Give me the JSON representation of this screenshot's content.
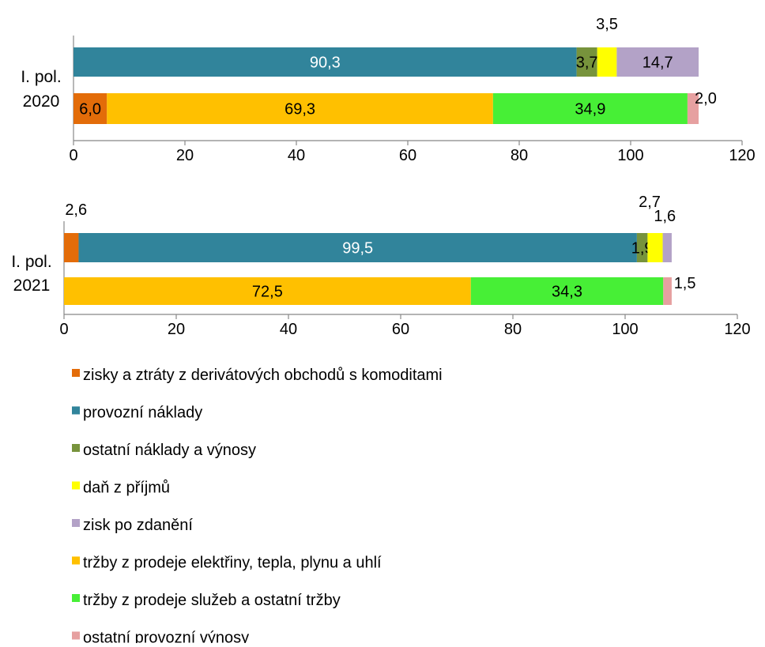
{
  "colors": {
    "derivatives": "#e36c09",
    "operating_costs": "#31849b",
    "other_costs": "#77933c",
    "income_tax": "#ffff00",
    "profit": "#b3a2c7",
    "sales_energy": "#ffc000",
    "sales_services": "#47ef36",
    "other_revenue": "#e6a0a0"
  },
  "legend": [
    {
      "key": "derivatives",
      "label": "zisky a ztráty z derivátových obchodů s komoditami"
    },
    {
      "key": "operating_costs",
      "label": "provozní náklady"
    },
    {
      "key": "other_costs",
      "label": "ostatní náklady a výnosy"
    },
    {
      "key": "income_tax",
      "label": "daň z příjmů"
    },
    {
      "key": "profit",
      "label": "zisk po zdanění"
    },
    {
      "key": "sales_energy",
      "label": "tržby z prodeje elektřiny, tepla, plynu a uhlí"
    },
    {
      "key": "sales_services",
      "label": "tržby z prodeje služeb a ostatní tržby"
    },
    {
      "key": "other_revenue",
      "label": "ostatní provozní výnosy"
    }
  ],
  "chart_data": [
    {
      "type": "bar",
      "orientation": "horizontal",
      "stacked": true,
      "category_label": [
        "I. pol.",
        "2020"
      ],
      "xlim": [
        0,
        120
      ],
      "xticks": [
        0,
        20,
        40,
        60,
        80,
        100,
        120
      ],
      "grid": false,
      "bars": [
        {
          "segments": [
            {
              "key": "operating_costs",
              "value": 90.3,
              "label": "90,3"
            },
            {
              "key": "other_costs",
              "value": 3.7,
              "label": "3,7"
            },
            {
              "key": "income_tax",
              "value": 3.5,
              "label": "3,5"
            },
            {
              "key": "profit",
              "value": 14.7,
              "label": "14,7"
            }
          ]
        },
        {
          "segments": [
            {
              "key": "derivatives",
              "value": 6.0,
              "label": "6,0"
            },
            {
              "key": "sales_energy",
              "value": 69.3,
              "label": "69,3"
            },
            {
              "key": "sales_services",
              "value": 34.9,
              "label": "34,9"
            },
            {
              "key": "other_revenue",
              "value": 2.0,
              "label": "2,0"
            }
          ]
        }
      ]
    },
    {
      "type": "bar",
      "orientation": "horizontal",
      "stacked": true,
      "category_label": [
        "I. pol.",
        "2021"
      ],
      "xlim": [
        0,
        120
      ],
      "xticks": [
        0,
        20,
        40,
        60,
        80,
        100,
        120
      ],
      "grid": false,
      "bars": [
        {
          "segments": [
            {
              "key": "derivatives",
              "value": 2.6,
              "label": "2,6"
            },
            {
              "key": "operating_costs",
              "value": 99.5,
              "label": "99,5"
            },
            {
              "key": "other_costs",
              "value": 1.9,
              "label": "1,9"
            },
            {
              "key": "income_tax",
              "value": 2.7,
              "label": "2,7"
            },
            {
              "key": "profit",
              "value": 1.6,
              "label": "1,6"
            }
          ]
        },
        {
          "segments": [
            {
              "key": "sales_energy",
              "value": 72.5,
              "label": "72,5"
            },
            {
              "key": "sales_services",
              "value": 34.3,
              "label": "34,3"
            },
            {
              "key": "other_revenue",
              "value": 1.5,
              "label": "1,5"
            }
          ]
        }
      ]
    }
  ]
}
